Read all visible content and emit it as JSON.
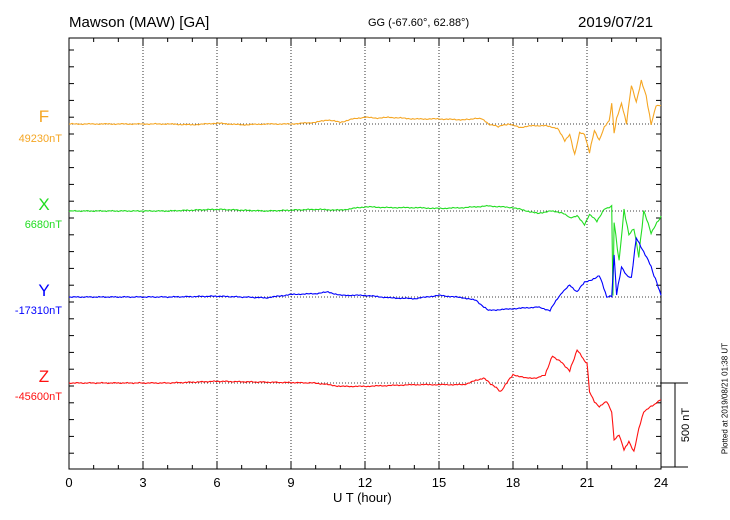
{
  "header": {
    "station": "Mawson (MAW)  [GA]",
    "coords": "GG (-67.60°,  62.88°)",
    "date": "2019/07/21"
  },
  "plotted_note": "Plotted at 2019/08/21 01:38 UT",
  "scale_label": "500 nT",
  "chart_data": {
    "type": "line",
    "title": "Mawson (MAW)  [GA]",
    "xlabel": "U T (hour)",
    "ylabel": "",
    "xlim": [
      0,
      24
    ],
    "x_ticks": [
      0,
      3,
      6,
      9,
      12,
      15,
      18,
      21,
      24
    ],
    "x_tick_labels": [
      "0",
      "3",
      "6",
      "9",
      "12",
      "15",
      "18",
      "21",
      "24"
    ],
    "grid": true,
    "scale_bar_nT": 500,
    "series": [
      {
        "name": "F",
        "baseline_label": "49230nT",
        "baseline_nT": 49230,
        "color": "#f5a623",
        "x": [
          0,
          1,
          2,
          3,
          4,
          5,
          6,
          7,
          8,
          9,
          10,
          10.5,
          11,
          11.5,
          12,
          12.5,
          13,
          14,
          15,
          16,
          16.7,
          17,
          17.4,
          17.8,
          18.3,
          18.8,
          19.3,
          19.8,
          20.1,
          20.3,
          20.5,
          20.7,
          20.9,
          21.1,
          21.3,
          21.5,
          21.7,
          21.9,
          22.0,
          22.1,
          22.2,
          22.4,
          22.6,
          22.8,
          23.0,
          23.2,
          23.4,
          23.6,
          23.8,
          24
        ],
        "values": [
          0,
          0,
          0,
          0,
          0,
          -5,
          5,
          -5,
          0,
          0,
          10,
          25,
          10,
          30,
          40,
          35,
          40,
          30,
          30,
          25,
          35,
          0,
          -15,
          0,
          -20,
          -10,
          -10,
          -25,
          -100,
          -60,
          -180,
          -50,
          -60,
          -170,
          -40,
          -100,
          -20,
          20,
          120,
          -50,
          30,
          120,
          0,
          230,
          130,
          260,
          170,
          0,
          110,
          110
        ]
      },
      {
        "name": "X",
        "baseline_label": "6680nT",
        "baseline_nT": 6680,
        "color": "#22dd22",
        "x": [
          0,
          2,
          4,
          6,
          8,
          10,
          11,
          12,
          13,
          14,
          15,
          16,
          17,
          18,
          19,
          19.5,
          20,
          20.3,
          20.6,
          20.9,
          21.1,
          21.4,
          21.7,
          21.9,
          22.0,
          22.05,
          22.1,
          22.3,
          22.5,
          22.7,
          22.9,
          23.1,
          23.3,
          23.6,
          24
        ],
        "values": [
          0,
          0,
          0,
          10,
          0,
          10,
          5,
          25,
          20,
          20,
          15,
          20,
          30,
          20,
          -15,
          0,
          -10,
          -40,
          -30,
          -80,
          -20,
          -60,
          10,
          20,
          30,
          -500,
          -70,
          -300,
          10,
          -140,
          -100,
          -270,
          0,
          -130,
          -30
        ]
      },
      {
        "name": "Y",
        "baseline_label": "-17310nT",
        "baseline_nT": -17310,
        "color": "#0000ff",
        "x": [
          0,
          2,
          4,
          6,
          8,
          9,
          10,
          10.5,
          11,
          12,
          13,
          14,
          15,
          16,
          16.5,
          17,
          18,
          19,
          19.5,
          19.8,
          20,
          20.3,
          20.6,
          20.9,
          21.2,
          21.5,
          21.8,
          22.0,
          22.1,
          22.2,
          22.4,
          22.6,
          22.8,
          23.0,
          23.3,
          23.6,
          24
        ],
        "values": [
          0,
          0,
          0,
          5,
          -5,
          15,
          20,
          30,
          10,
          10,
          -5,
          -10,
          10,
          -5,
          -20,
          -80,
          -70,
          -60,
          -80,
          -10,
          30,
          70,
          30,
          90,
          100,
          130,
          0,
          10,
          240,
          20,
          180,
          130,
          110,
          350,
          270,
          180,
          10
        ]
      },
      {
        "name": "Z",
        "baseline_label": "-45600nT",
        "baseline_nT": -45600,
        "color": "#ff1111",
        "x": [
          0,
          2,
          4,
          6,
          8,
          10,
          11,
          12,
          13,
          14,
          15,
          16,
          16.8,
          17.5,
          18,
          18.5,
          19,
          19.3,
          19.6,
          20,
          20.3,
          20.6,
          20.9,
          21.0,
          21.1,
          21.3,
          21.5,
          21.8,
          22.0,
          22.1,
          22.3,
          22.5,
          22.7,
          22.9,
          23.1,
          23.3,
          23.6,
          24
        ],
        "values": [
          0,
          0,
          0,
          10,
          5,
          0,
          -20,
          -20,
          -15,
          -10,
          -10,
          -10,
          30,
          -50,
          50,
          30,
          30,
          50,
          160,
          120,
          70,
          200,
          130,
          120,
          -50,
          -110,
          -140,
          -110,
          -170,
          -340,
          -310,
          -400,
          -350,
          -410,
          -270,
          -170,
          -140,
          -100
        ]
      }
    ]
  }
}
